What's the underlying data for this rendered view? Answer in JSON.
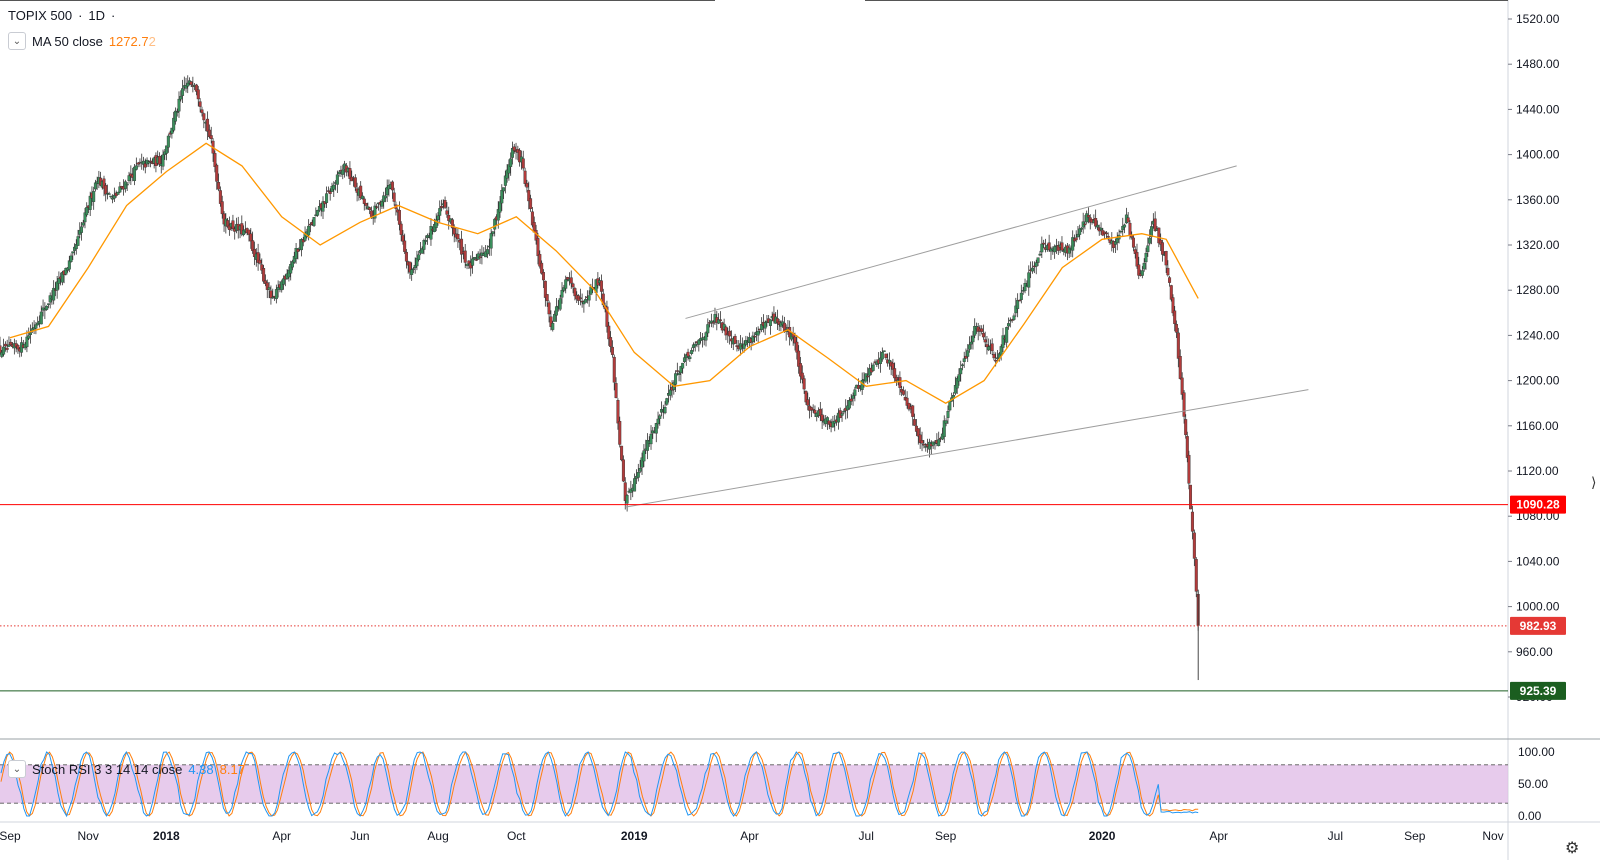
{
  "header": {
    "symbol": "TOPIX 500",
    "separator": " · ",
    "interval": "1D",
    "trailing": " ·"
  },
  "ma_legend": {
    "label": "MA 50 close",
    "value": "1272.7",
    "value_suffix": "2",
    "color": "#ff7f0e"
  },
  "stoch_legend": {
    "label": "Stoch RSI 3 3 14 14 close",
    "k_value": "4.38",
    "d_value": "8.17",
    "k_color": "#2196f3",
    "d_color": "#ff7f0e"
  },
  "icons": {
    "legend_toggle": "chevron-down-icon",
    "settings": "gear-icon"
  },
  "colors": {
    "up": "#26a69a",
    "down": "#ef5350",
    "candle_up": "#3a8f5c",
    "candle_down": "#b23b3b",
    "ma": "#ff9800",
    "support": "#ff0000",
    "low_line": "#1b5e20",
    "stoch_band": "#e1bee7"
  },
  "chart_data": {
    "type": "candlestick",
    "title": "TOPIX 500 · 1D",
    "y_axis": {
      "min": 920,
      "max": 1520,
      "ticks": [
        "1520.00",
        "1480.00",
        "1440.00",
        "1400.00",
        "1360.00",
        "1320.00",
        "1280.00",
        "1240.00",
        "1200.00",
        "1160.00",
        "1120.00",
        "1080.00",
        "1040.00",
        "1000.00",
        "960.00",
        "920.00"
      ]
    },
    "x_axis": {
      "ticks": [
        {
          "label": "Sep",
          "date": "2017-09-01",
          "bold": false
        },
        {
          "label": "Nov",
          "date": "2017-11-01",
          "bold": false
        },
        {
          "label": "2018",
          "date": "2018-01-01",
          "bold": true
        },
        {
          "label": "Apr",
          "date": "2018-04-01",
          "bold": false
        },
        {
          "label": "Jun",
          "date": "2018-06-01",
          "bold": false
        },
        {
          "label": "Aug",
          "date": "2018-08-01",
          "bold": false
        },
        {
          "label": "Oct",
          "date": "2018-10-01",
          "bold": false
        },
        {
          "label": "2019",
          "date": "2019-01-01",
          "bold": true
        },
        {
          "label": "Apr",
          "date": "2019-04-01",
          "bold": false
        },
        {
          "label": "Jul",
          "date": "2019-07-01",
          "bold": false
        },
        {
          "label": "Sep",
          "date": "2019-09-01",
          "bold": false
        },
        {
          "label": "2020",
          "date": "2020-01-01",
          "bold": true
        },
        {
          "label": "Apr",
          "date": "2020-04-01",
          "bold": false
        },
        {
          "label": "Jul",
          "date": "2020-07-01",
          "bold": false
        },
        {
          "label": "Sep",
          "date": "2020-09-01",
          "bold": false
        },
        {
          "label": "Nov",
          "date": "2020-11-01",
          "bold": false
        }
      ]
    },
    "price_path": [
      {
        "date": "2017-08-20",
        "close": 1225
      },
      {
        "date": "2017-09-10",
        "close": 1230
      },
      {
        "date": "2017-10-01",
        "close": 1270
      },
      {
        "date": "2017-10-20",
        "close": 1310
      },
      {
        "date": "2017-11-08",
        "close": 1380
      },
      {
        "date": "2017-11-20",
        "close": 1360
      },
      {
        "date": "2017-12-10",
        "close": 1390
      },
      {
        "date": "2017-12-28",
        "close": 1395
      },
      {
        "date": "2018-01-15",
        "close": 1460
      },
      {
        "date": "2018-01-23",
        "close": 1465
      },
      {
        "date": "2018-02-05",
        "close": 1410
      },
      {
        "date": "2018-02-15",
        "close": 1340
      },
      {
        "date": "2018-03-05",
        "close": 1330
      },
      {
        "date": "2018-03-25",
        "close": 1270
      },
      {
        "date": "2018-04-15",
        "close": 1320
      },
      {
        "date": "2018-05-20",
        "close": 1390
      },
      {
        "date": "2018-06-10",
        "close": 1345
      },
      {
        "date": "2018-06-25",
        "close": 1375
      },
      {
        "date": "2018-07-10",
        "close": 1295
      },
      {
        "date": "2018-08-05",
        "close": 1355
      },
      {
        "date": "2018-08-25",
        "close": 1300
      },
      {
        "date": "2018-09-10",
        "close": 1320
      },
      {
        "date": "2018-09-28",
        "close": 1405
      },
      {
        "date": "2018-10-05",
        "close": 1395
      },
      {
        "date": "2018-10-15",
        "close": 1330
      },
      {
        "date": "2018-10-28",
        "close": 1250
      },
      {
        "date": "2018-11-10",
        "close": 1290
      },
      {
        "date": "2018-11-20",
        "close": 1270
      },
      {
        "date": "2018-12-05",
        "close": 1290
      },
      {
        "date": "2018-12-15",
        "close": 1220
      },
      {
        "date": "2018-12-25",
        "close": 1090
      },
      {
        "date": "2019-01-10",
        "close": 1140
      },
      {
        "date": "2019-02-05",
        "close": 1210
      },
      {
        "date": "2019-03-05",
        "close": 1255
      },
      {
        "date": "2019-03-25",
        "close": 1230
      },
      {
        "date": "2019-04-20",
        "close": 1255
      },
      {
        "date": "2019-05-05",
        "close": 1240
      },
      {
        "date": "2019-05-15",
        "close": 1180
      },
      {
        "date": "2019-06-05",
        "close": 1160
      },
      {
        "date": "2019-06-25",
        "close": 1195
      },
      {
        "date": "2019-07-15",
        "close": 1225
      },
      {
        "date": "2019-07-30",
        "close": 1190
      },
      {
        "date": "2019-08-15",
        "close": 1140
      },
      {
        "date": "2019-08-28",
        "close": 1150
      },
      {
        "date": "2019-09-10",
        "close": 1200
      },
      {
        "date": "2019-09-25",
        "close": 1250
      },
      {
        "date": "2019-10-10",
        "close": 1220
      },
      {
        "date": "2019-10-30",
        "close": 1275
      },
      {
        "date": "2019-11-15",
        "close": 1320
      },
      {
        "date": "2019-12-05",
        "close": 1315
      },
      {
        "date": "2019-12-20",
        "close": 1345
      },
      {
        "date": "2020-01-10",
        "close": 1320
      },
      {
        "date": "2020-01-20",
        "close": 1345
      },
      {
        "date": "2020-01-31",
        "close": 1290
      },
      {
        "date": "2020-02-10",
        "close": 1340
      },
      {
        "date": "2020-02-20",
        "close": 1305
      },
      {
        "date": "2020-02-28",
        "close": 1240
      },
      {
        "date": "2020-03-05",
        "close": 1170
      },
      {
        "date": "2020-03-10",
        "close": 1090
      },
      {
        "date": "2020-03-13",
        "close": 1040
      },
      {
        "date": "2020-03-16",
        "close": 982.93
      }
    ],
    "ma50": [
      {
        "date": "2017-09-01",
        "value": 1238
      },
      {
        "date": "2017-10-01",
        "value": 1248
      },
      {
        "date": "2017-11-01",
        "value": 1300
      },
      {
        "date": "2017-12-01",
        "value": 1355
      },
      {
        "date": "2018-01-01",
        "value": 1385
      },
      {
        "date": "2018-02-01",
        "value": 1410
      },
      {
        "date": "2018-03-01",
        "value": 1390
      },
      {
        "date": "2018-04-01",
        "value": 1345
      },
      {
        "date": "2018-05-01",
        "value": 1320
      },
      {
        "date": "2018-06-01",
        "value": 1340
      },
      {
        "date": "2018-07-01",
        "value": 1355
      },
      {
        "date": "2018-08-01",
        "value": 1340
      },
      {
        "date": "2018-09-01",
        "value": 1330
      },
      {
        "date": "2018-10-01",
        "value": 1345
      },
      {
        "date": "2018-11-01",
        "value": 1315
      },
      {
        "date": "2018-12-01",
        "value": 1280
      },
      {
        "date": "2019-01-01",
        "value": 1225
      },
      {
        "date": "2019-02-01",
        "value": 1195
      },
      {
        "date": "2019-03-01",
        "value": 1200
      },
      {
        "date": "2019-04-01",
        "value": 1230
      },
      {
        "date": "2019-05-01",
        "value": 1245
      },
      {
        "date": "2019-06-01",
        "value": 1220
      },
      {
        "date": "2019-07-01",
        "value": 1195
      },
      {
        "date": "2019-08-01",
        "value": 1200
      },
      {
        "date": "2019-09-01",
        "value": 1180
      },
      {
        "date": "2019-10-01",
        "value": 1200
      },
      {
        "date": "2019-11-01",
        "value": 1250
      },
      {
        "date": "2019-12-01",
        "value": 1300
      },
      {
        "date": "2020-01-01",
        "value": 1325
      },
      {
        "date": "2020-02-01",
        "value": 1330
      },
      {
        "date": "2020-02-20",
        "value": 1325
      },
      {
        "date": "2020-03-16",
        "value": 1272.72
      }
    ],
    "trendlines": [
      {
        "name": "upper-channel",
        "from": {
          "date": "2019-02-10",
          "value": 1255
        },
        "to": {
          "date": "2020-04-15",
          "value": 1390
        }
      },
      {
        "name": "lower-channel",
        "from": {
          "date": "2018-12-25",
          "value": 1088
        },
        "to": {
          "date": "2020-06-10",
          "value": 1192
        }
      }
    ],
    "horizontal_levels": [
      {
        "value": 1090.28,
        "label": "1090.28",
        "style": "solid",
        "color": "#ff0000"
      },
      {
        "value": 982.93,
        "label": "982.93",
        "style": "dotted",
        "color": "#e53935"
      },
      {
        "value": 925.39,
        "label": "925.39",
        "style": "solid",
        "color": "#1b5e20"
      }
    ],
    "stoch_rsi": {
      "y_ticks": [
        "100.00",
        "50.00",
        "0.00"
      ],
      "upper_band": 80,
      "lower_band": 20,
      "k_last": 4.38,
      "d_last": 8.17
    }
  }
}
